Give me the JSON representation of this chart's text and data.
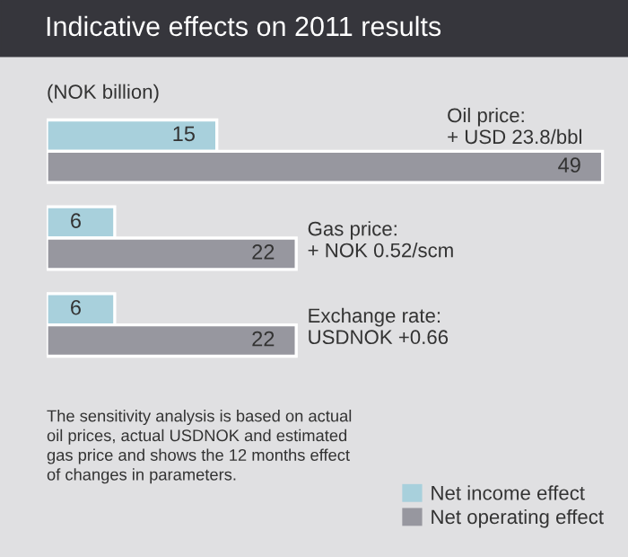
{
  "chart_data": {
    "type": "bar",
    "orientation": "horizontal",
    "title": "Indicative effects on 2011 results",
    "ylabel": "(NOK billion)",
    "categories": [
      "Oil price:\n+ USD 23.8/bbl",
      "Gas price:\n+ NOK 0.52/scm",
      "Exchange rate:\nUSDNOK +0.66"
    ],
    "series": [
      {
        "name": "Net income effect",
        "color": "#a8d0dc",
        "values": [
          15,
          6,
          6
        ]
      },
      {
        "name": "Net operating effect",
        "color": "#97979f",
        "values": [
          49,
          22,
          22
        ]
      }
    ],
    "data_labels": true,
    "legend": "bottom right",
    "annotations": [
      "The sensitivity analysis is based on actual\noil prices, actual USDNOK and estimated\ngas price and shows the 12 months effect\nof changes in parameters."
    ]
  }
}
